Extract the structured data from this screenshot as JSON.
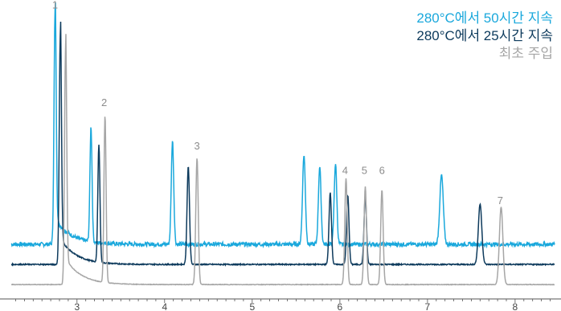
{
  "chart_data": {
    "type": "line",
    "title": "",
    "xlabel": "",
    "ylabel": "",
    "x_ticks": [
      "3",
      "4",
      "5",
      "6",
      "7",
      "8"
    ],
    "xlim": [
      2.25,
      8.45
    ],
    "ylim": [
      0,
      100
    ],
    "grid": false,
    "legend_position": "top-right",
    "series": [
      {
        "name": "280°C에서 50시간 지속",
        "color": "#1aa8dc",
        "baseline": 19,
        "noise": 0.7,
        "peaks": [
          {
            "x": 2.75,
            "h": 81,
            "w": 0.012
          },
          {
            "x": 3.16,
            "h": 40,
            "w": 0.012
          },
          {
            "x": 4.09,
            "h": 36,
            "w": 0.014
          },
          {
            "x": 5.59,
            "h": 31,
            "w": 0.016
          },
          {
            "x": 5.77,
            "h": 27,
            "w": 0.015
          },
          {
            "x": 5.95,
            "h": 28,
            "w": 0.015
          },
          {
            "x": 7.16,
            "h": 24,
            "w": 0.02
          }
        ]
      },
      {
        "name": "280°C에서 25시간 지속",
        "color": "#0d3a5c",
        "baseline": 12,
        "noise": 0.2,
        "peaks": [
          {
            "x": 2.81,
            "h": 80,
            "w": 0.012
          },
          {
            "x": 3.25,
            "h": 41,
            "w": 0.012
          },
          {
            "x": 4.27,
            "h": 34,
            "w": 0.014
          },
          {
            "x": 5.89,
            "h": 25,
            "w": 0.014
          },
          {
            "x": 6.09,
            "h": 24,
            "w": 0.014
          },
          {
            "x": 6.29,
            "h": 24,
            "w": 0.014
          },
          {
            "x": 7.6,
            "h": 21,
            "w": 0.02
          }
        ]
      },
      {
        "name": "최초 주입",
        "color": "#a6a6a6",
        "baseline": 5,
        "noise": 0.1,
        "peaks": [
          {
            "x": 2.87,
            "h": 82,
            "w": 0.012
          },
          {
            "x": 3.32,
            "h": 58,
            "w": 0.012
          },
          {
            "x": 4.37,
            "h": 44,
            "w": 0.014
          },
          {
            "x": 6.07,
            "h": 37,
            "w": 0.014
          },
          {
            "x": 6.29,
            "h": 34,
            "w": 0.014
          },
          {
            "x": 6.48,
            "h": 33,
            "w": 0.014
          },
          {
            "x": 7.84,
            "h": 27,
            "w": 0.02
          }
        ]
      }
    ],
    "peak_labels": [
      {
        "text": "1",
        "x": 2.75,
        "y": 101
      },
      {
        "text": "2",
        "x": 3.31,
        "y": 67
      },
      {
        "text": "3",
        "x": 4.37,
        "y": 52
      },
      {
        "text": "4",
        "x": 6.06,
        "y": 43.5
      },
      {
        "text": "5",
        "x": 6.28,
        "y": 43.5
      },
      {
        "text": "6",
        "x": 6.48,
        "y": 43.5
      },
      {
        "text": "7",
        "x": 7.83,
        "y": 33
      }
    ]
  }
}
